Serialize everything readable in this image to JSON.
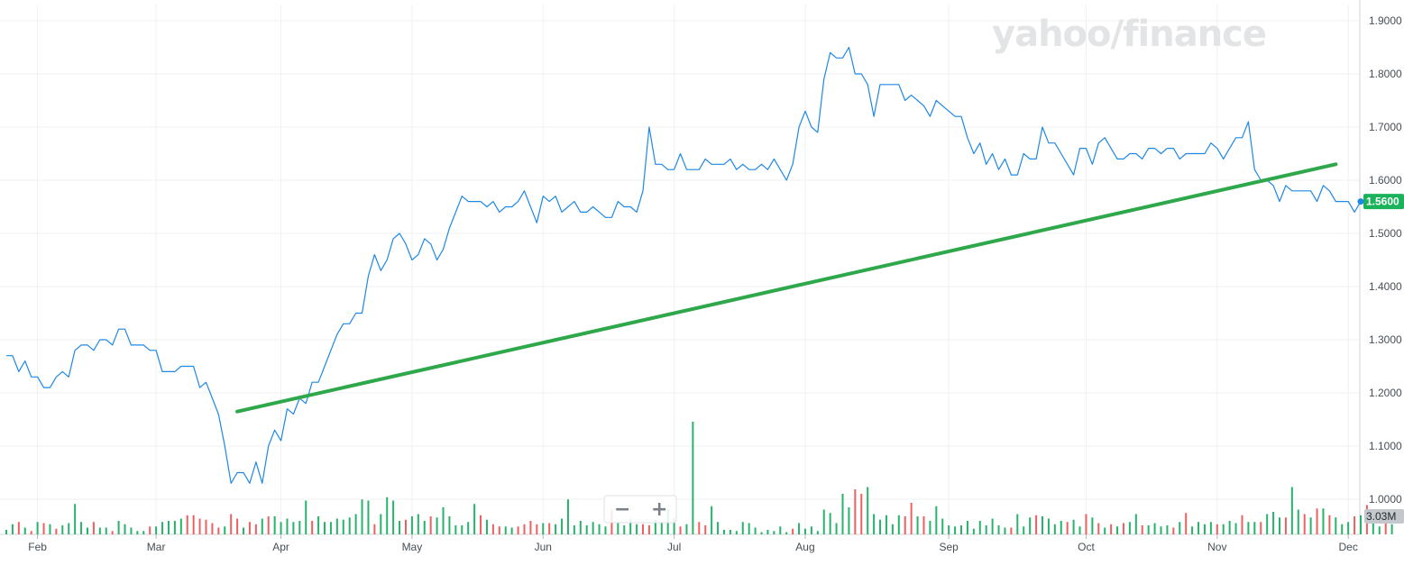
{
  "chart_data": {
    "type": "line",
    "title": "",
    "xlabel": "",
    "ylabel": "",
    "ylim": [
      0.95,
      1.91
    ],
    "x_ticks": [
      "Feb",
      "Mar",
      "Apr",
      "May",
      "Jun",
      "Jul",
      "Aug",
      "Sep",
      "Oct",
      "Nov",
      "Dec"
    ],
    "y_ticks": [
      "1.9000",
      "1.8000",
      "1.7000",
      "1.6000",
      "1.5000",
      "1.4000",
      "1.3000",
      "1.2000",
      "1.1000",
      "1.0000"
    ],
    "last_price_label": "1.5600",
    "volume_label": "3.03M",
    "colors": {
      "price_line": "#1e88e5",
      "trendline": "#2ea84a",
      "volume_up": "#26b36c",
      "volume_down": "#f05f5f",
      "last_price_bg": "#1ab35c",
      "volume_label_bg": "#c4c8cc",
      "grid": "#f0f1f2"
    },
    "series": [
      {
        "values": [
          1.27,
          1.27,
          1.24,
          1.26,
          1.23,
          1.23,
          1.21,
          1.21,
          1.23,
          1.24,
          1.23,
          1.28,
          1.29,
          1.29,
          1.28,
          1.3,
          1.3,
          1.29,
          1.32,
          1.32,
          1.29,
          1.29,
          1.29,
          1.28,
          1.28,
          1.24,
          1.24,
          1.24,
          1.25,
          1.25,
          1.25,
          1.21,
          1.22,
          1.19,
          1.16,
          1.1,
          1.03,
          1.05,
          1.05,
          1.03,
          1.07,
          1.03,
          1.1,
          1.13,
          1.11,
          1.17,
          1.16,
          1.19,
          1.18,
          1.22,
          1.22,
          1.25,
          1.28,
          1.31,
          1.33,
          1.33,
          1.35,
          1.35,
          1.42,
          1.46,
          1.43,
          1.45,
          1.49,
          1.5,
          1.48,
          1.45,
          1.46,
          1.49,
          1.48,
          1.45,
          1.47,
          1.51,
          1.54,
          1.57,
          1.56,
          1.56,
          1.56,
          1.55,
          1.56,
          1.54,
          1.55,
          1.55,
          1.56,
          1.58,
          1.55,
          1.52,
          1.57,
          1.56,
          1.57,
          1.54,
          1.55,
          1.56,
          1.54,
          1.54,
          1.55,
          1.54,
          1.53,
          1.53,
          1.56,
          1.55,
          1.55,
          1.54,
          1.58,
          1.7,
          1.63,
          1.63,
          1.62,
          1.62,
          1.65,
          1.62,
          1.62,
          1.62,
          1.64,
          1.63,
          1.63,
          1.63,
          1.64,
          1.62,
          1.63,
          1.62,
          1.62,
          1.63,
          1.62,
          1.64,
          1.62,
          1.6,
          1.63,
          1.7,
          1.73,
          1.7,
          1.69,
          1.79,
          1.84,
          1.83,
          1.83,
          1.85,
          1.8,
          1.8,
          1.78,
          1.72,
          1.78,
          1.78,
          1.78,
          1.78,
          1.75,
          1.76,
          1.75,
          1.74,
          1.72,
          1.75,
          1.74,
          1.73,
          1.72,
          1.72,
          1.68,
          1.65,
          1.67,
          1.63,
          1.65,
          1.62,
          1.64,
          1.61,
          1.61,
          1.65,
          1.64,
          1.64,
          1.7,
          1.67,
          1.67,
          1.65,
          1.63,
          1.61,
          1.66,
          1.66,
          1.63,
          1.67,
          1.68,
          1.66,
          1.64,
          1.64,
          1.65,
          1.65,
          1.64,
          1.66,
          1.66,
          1.65,
          1.66,
          1.66,
          1.64,
          1.65,
          1.65,
          1.65,
          1.65,
          1.67,
          1.66,
          1.64,
          1.66,
          1.68,
          1.68,
          1.71,
          1.62,
          1.6,
          1.6,
          1.59,
          1.56,
          1.59,
          1.58,
          1.58,
          1.58,
          1.58,
          1.56,
          1.59,
          1.58,
          1.56,
          1.56,
          1.56,
          1.54,
          1.56
        ]
      },
      {
        "name": "",
        "type": "trendline",
        "points": [
          [
            37,
            1.165
          ],
          [
            213,
            1.63
          ]
        ]
      }
    ],
    "volume": [
      [
        1,
        0.2
      ],
      [
        1,
        0.45
      ],
      [
        0,
        0.55
      ],
      [
        1,
        0.3
      ],
      [
        0,
        0.15
      ],
      [
        1,
        0.55
      ],
      [
        0,
        0.5
      ],
      [
        1,
        0.45
      ],
      [
        0,
        0.25
      ],
      [
        1,
        0.4
      ],
      [
        1,
        0.5
      ],
      [
        1,
        1.35
      ],
      [
        1,
        0.55
      ],
      [
        1,
        0.3
      ],
      [
        0,
        0.55
      ],
      [
        1,
        0.3
      ],
      [
        1,
        0.3
      ],
      [
        0,
        0.15
      ],
      [
        1,
        0.6
      ],
      [
        1,
        0.45
      ],
      [
        1,
        0.3
      ],
      [
        1,
        0.15
      ],
      [
        1,
        0.15
      ],
      [
        0,
        0.35
      ],
      [
        1,
        0.35
      ],
      [
        1,
        0.55
      ],
      [
        1,
        0.6
      ],
      [
        1,
        0.6
      ],
      [
        1,
        0.7
      ],
      [
        0,
        0.85
      ],
      [
        0,
        0.85
      ],
      [
        0,
        0.7
      ],
      [
        0,
        0.65
      ],
      [
        0,
        0.5
      ],
      [
        0,
        0.3
      ],
      [
        1,
        0.35
      ],
      [
        0,
        0.9
      ],
      [
        0,
        0.7
      ],
      [
        1,
        0.3
      ],
      [
        0,
        0.55
      ],
      [
        0,
        0.45
      ],
      [
        1,
        0.7
      ],
      [
        0,
        0.8
      ],
      [
        1,
        0.8
      ],
      [
        1,
        0.55
      ],
      [
        1,
        0.7
      ],
      [
        1,
        0.55
      ],
      [
        1,
        0.6
      ],
      [
        1,
        1.5
      ],
      [
        0,
        0.6
      ],
      [
        1,
        0.8
      ],
      [
        1,
        0.55
      ],
      [
        1,
        0.55
      ],
      [
        1,
        0.7
      ],
      [
        1,
        0.65
      ],
      [
        1,
        0.75
      ],
      [
        1,
        0.9
      ],
      [
        1,
        1.55
      ],
      [
        1,
        1.5
      ],
      [
        0,
        0.45
      ],
      [
        1,
        0.9
      ],
      [
        1,
        1.65
      ],
      [
        1,
        1.5
      ],
      [
        1,
        0.6
      ],
      [
        0,
        0.65
      ],
      [
        1,
        0.8
      ],
      [
        1,
        0.9
      ],
      [
        1,
        0.6
      ],
      [
        0,
        0.8
      ],
      [
        1,
        0.75
      ],
      [
        1,
        1.2
      ],
      [
        1,
        0.8
      ],
      [
        1,
        0.4
      ],
      [
        1,
        0.4
      ],
      [
        1,
        0.55
      ],
      [
        1,
        1.35
      ],
      [
        0,
        0.85
      ],
      [
        1,
        0.65
      ],
      [
        0,
        0.45
      ],
      [
        0,
        0.35
      ],
      [
        1,
        0.35
      ],
      [
        1,
        0.3
      ],
      [
        0,
        0.35
      ],
      [
        0,
        0.45
      ],
      [
        0,
        0.6
      ],
      [
        0,
        0.45
      ],
      [
        1,
        0.5
      ],
      [
        0,
        0.5
      ],
      [
        1,
        0.45
      ],
      [
        1,
        0.7
      ],
      [
        1,
        1.55
      ],
      [
        1,
        0.4
      ],
      [
        1,
        0.6
      ],
      [
        1,
        0.4
      ],
      [
        1,
        0.55
      ],
      [
        1,
        0.45
      ],
      [
        1,
        0.35
      ],
      [
        0,
        1.1
      ],
      [
        1,
        0.55
      ],
      [
        1,
        0.4
      ],
      [
        1,
        0.7
      ],
      [
        1,
        0.45
      ],
      [
        0,
        0.45
      ],
      [
        0,
        0.4
      ],
      [
        1,
        0.65
      ],
      [
        1,
        0.5
      ],
      [
        1,
        1.1
      ],
      [
        1,
        0.7
      ],
      [
        0,
        0.35
      ],
      [
        1,
        0.45
      ],
      [
        1,
        5.0
      ],
      [
        0,
        0.55
      ],
      [
        0,
        0.4
      ],
      [
        1,
        1.25
      ],
      [
        1,
        0.55
      ],
      [
        1,
        0.2
      ],
      [
        1,
        0.2
      ],
      [
        1,
        0.15
      ],
      [
        1,
        0.55
      ],
      [
        1,
        0.5
      ],
      [
        1,
        0.3
      ],
      [
        1,
        0.1
      ],
      [
        1,
        0.2
      ],
      [
        1,
        0.15
      ],
      [
        1,
        0.35
      ],
      [
        1,
        0.1
      ],
      [
        0,
        0.25
      ],
      [
        1,
        0.5
      ],
      [
        1,
        0.25
      ],
      [
        1,
        0.35
      ],
      [
        1,
        0.15
      ],
      [
        1,
        1.1
      ],
      [
        1,
        0.95
      ],
      [
        1,
        0.5
      ],
      [
        1,
        1.8
      ],
      [
        1,
        1.2
      ],
      [
        0,
        2.0
      ],
      [
        0,
        1.8
      ],
      [
        1,
        2.1
      ],
      [
        1,
        0.9
      ],
      [
        1,
        0.65
      ],
      [
        1,
        0.85
      ],
      [
        1,
        0.45
      ],
      [
        1,
        0.85
      ],
      [
        0,
        0.8
      ],
      [
        0,
        1.4
      ],
      [
        1,
        0.8
      ],
      [
        0,
        0.8
      ],
      [
        1,
        0.6
      ],
      [
        1,
        1.25
      ],
      [
        1,
        0.7
      ],
      [
        1,
        0.4
      ],
      [
        1,
        0.35
      ],
      [
        1,
        0.4
      ],
      [
        1,
        0.6
      ],
      [
        1,
        0.25
      ],
      [
        1,
        0.6
      ],
      [
        1,
        0.4
      ],
      [
        1,
        0.7
      ],
      [
        1,
        0.4
      ],
      [
        1,
        0.3
      ],
      [
        0,
        0.3
      ],
      [
        1,
        0.9
      ],
      [
        1,
        0.35
      ],
      [
        1,
        0.75
      ],
      [
        0,
        0.85
      ],
      [
        1,
        0.8
      ],
      [
        1,
        0.7
      ],
      [
        1,
        0.45
      ],
      [
        1,
        0.6
      ],
      [
        0,
        0.55
      ],
      [
        1,
        0.65
      ],
      [
        1,
        0.35
      ],
      [
        0,
        0.9
      ],
      [
        1,
        0.75
      ],
      [
        0,
        0.5
      ],
      [
        1,
        0.3
      ],
      [
        0,
        0.45
      ],
      [
        1,
        0.35
      ],
      [
        0,
        0.5
      ],
      [
        1,
        0.55
      ],
      [
        1,
        0.9
      ],
      [
        0,
        0.4
      ],
      [
        1,
        0.4
      ],
      [
        1,
        0.5
      ],
      [
        1,
        0.35
      ],
      [
        1,
        0.4
      ],
      [
        0,
        0.3
      ],
      [
        1,
        0.55
      ],
      [
        0,
        0.95
      ],
      [
        1,
        0.35
      ],
      [
        1,
        0.55
      ],
      [
        1,
        0.45
      ],
      [
        1,
        0.55
      ],
      [
        0,
        0.45
      ],
      [
        1,
        0.45
      ],
      [
        1,
        0.6
      ],
      [
        1,
        0.5
      ],
      [
        0,
        0.85
      ],
      [
        1,
        0.55
      ],
      [
        1,
        0.55
      ],
      [
        0,
        0.55
      ],
      [
        1,
        0.9
      ],
      [
        1,
        1.0
      ],
      [
        1,
        0.75
      ],
      [
        0,
        0.75
      ],
      [
        1,
        2.1
      ],
      [
        1,
        1.1
      ],
      [
        0,
        0.9
      ],
      [
        1,
        0.75
      ],
      [
        0,
        1.15
      ],
      [
        1,
        1.15
      ],
      [
        0,
        0.85
      ],
      [
        1,
        0.75
      ],
      [
        1,
        0.45
      ],
      [
        1,
        0.55
      ],
      [
        0,
        0.8
      ],
      [
        1,
        0.85
      ],
      [
        0,
        1.3
      ],
      [
        1,
        0.65
      ],
      [
        1,
        0.35
      ],
      [
        0,
        0.8
      ],
      [
        1,
        0.45
      ]
    ]
  },
  "controls": {
    "zoom_out_label": "−",
    "zoom_in_label": "+"
  },
  "brand": {
    "watermark": "yahoo/finance"
  }
}
